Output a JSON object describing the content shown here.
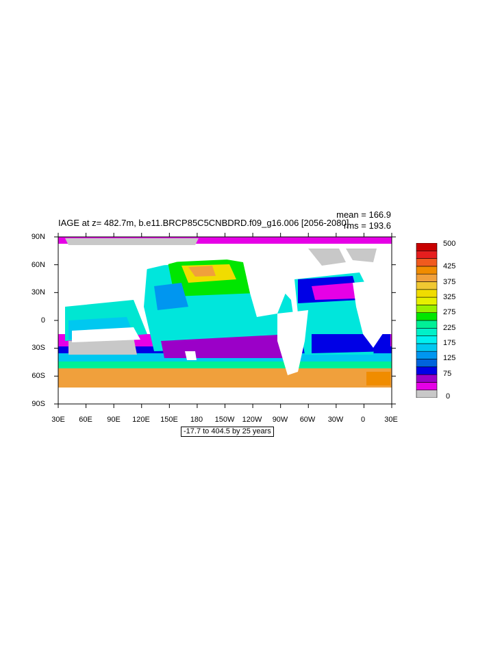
{
  "plot": {
    "title": "IAGE at z= 482.7m, b.e11.BRCP85C5CNBDRD.f09_g16.006 [2056-2080]",
    "mean": "mean = 166.9",
    "rms": "rms = 193.6",
    "range_label": "-17.7 to 404.5 by 25 years"
  },
  "map": {
    "lat_labels": [
      "90N",
      "60N",
      "30N",
      "0",
      "30S",
      "60S",
      "90S"
    ],
    "lon_labels": [
      "30E",
      "60E",
      "90E",
      "120E",
      "150E",
      "180",
      "150W",
      "120W",
      "90W",
      "60W",
      "30W",
      "0",
      "30E"
    ],
    "land_color": "#ffffff",
    "missing_color": "#c8c8c8"
  },
  "colorbar": {
    "labels": [
      "500",
      "425",
      "375",
      "325",
      "275",
      "225",
      "175",
      "125",
      "75",
      "0"
    ],
    "colors": [
      "#c8c8c8",
      "#e600e6",
      "#9b00c8",
      "#0000e6",
      "#0064dc",
      "#0096f0",
      "#00c8f0",
      "#00f0f0",
      "#00f0c8",
      "#00f096",
      "#00e600",
      "#96f000",
      "#e6f000",
      "#f0dc00",
      "#f0c832",
      "#f0a03c",
      "#f08c00",
      "#f05a1e",
      "#e61e1e",
      "#c80000"
    ]
  }
}
